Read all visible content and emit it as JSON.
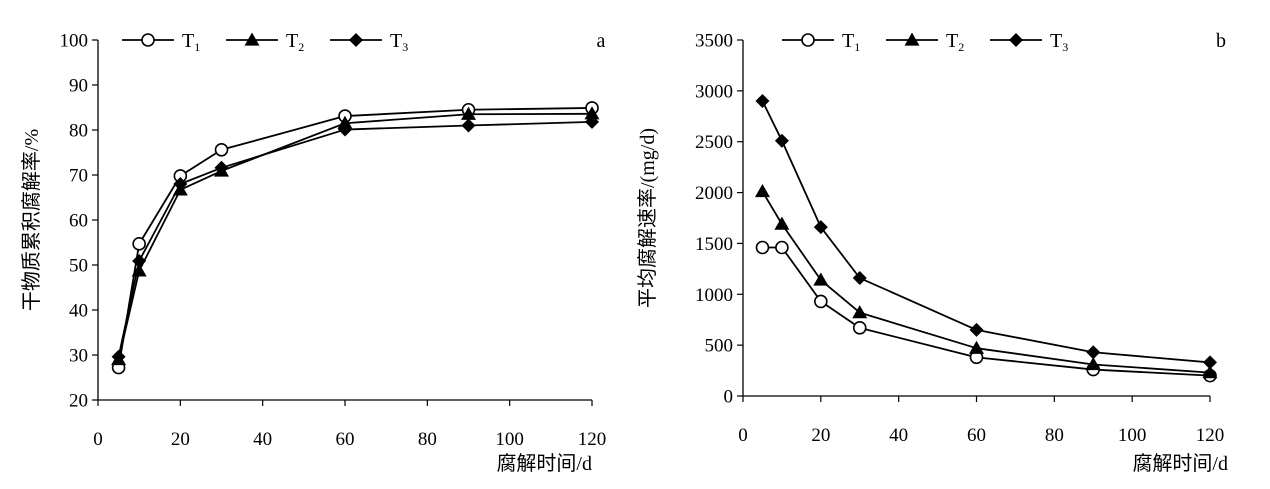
{
  "chart_data": [
    {
      "type": "line",
      "panel_label": "a",
      "xlabel": "腐解时间/d",
      "ylabel": "干物质累积腐解率/%",
      "xlim": [
        0,
        120
      ],
      "ylim": [
        20,
        100
      ],
      "xticks": [
        0,
        20,
        40,
        60,
        80,
        100,
        120
      ],
      "yticks": [
        20,
        30,
        40,
        50,
        60,
        70,
        80,
        90,
        100
      ],
      "grid": false,
      "legend": "top-left",
      "series": [
        {
          "name": "T1",
          "name_base": "T",
          "name_sub": "1",
          "marker": "circle-open",
          "x": [
            5,
            10,
            20,
            30,
            60,
            90,
            120
          ],
          "y": [
            27.2,
            54.7,
            69.8,
            75.6,
            83.1,
            84.5,
            84.9
          ]
        },
        {
          "name": "T2",
          "name_base": "T",
          "name_sub": "2",
          "marker": "triangle",
          "x": [
            5,
            10,
            20,
            30,
            60,
            90,
            120
          ],
          "y": [
            29.0,
            48.7,
            66.7,
            70.9,
            81.5,
            83.5,
            83.6
          ]
        },
        {
          "name": "T3",
          "name_base": "T",
          "name_sub": "3",
          "marker": "diamond",
          "x": [
            5,
            10,
            20,
            30,
            60,
            90,
            120
          ],
          "y": [
            29.6,
            50.9,
            68.0,
            71.6,
            80.1,
            81.0,
            81.8
          ]
        }
      ]
    },
    {
      "type": "line",
      "panel_label": "b",
      "xlabel": "腐解时间/d",
      "ylabel": "平均腐解速率/(mg/d)",
      "xlim": [
        0,
        120
      ],
      "ylim": [
        0,
        3500
      ],
      "xticks": [
        0,
        20,
        40,
        60,
        80,
        100,
        120
      ],
      "yticks": [
        0,
        500,
        1000,
        1500,
        2000,
        2500,
        3000,
        3500
      ],
      "grid": false,
      "legend": "top-left",
      "series": [
        {
          "name": "T1",
          "name_base": "T",
          "name_sub": "1",
          "marker": "circle-open",
          "x": [
            5,
            10,
            20,
            30,
            60,
            90,
            120
          ],
          "y": [
            1460,
            1460,
            930,
            670,
            380,
            260,
            200
          ]
        },
        {
          "name": "T2",
          "name_base": "T",
          "name_sub": "2",
          "marker": "triangle",
          "x": [
            5,
            10,
            20,
            30,
            60,
            90,
            120
          ],
          "y": [
            2010,
            1690,
            1140,
            820,
            470,
            310,
            230
          ]
        },
        {
          "name": "T3",
          "name_base": "T",
          "name_sub": "3",
          "marker": "diamond",
          "x": [
            5,
            10,
            20,
            30,
            60,
            90,
            120
          ],
          "y": [
            2900,
            2510,
            1660,
            1160,
            650,
            430,
            330
          ]
        }
      ]
    }
  ]
}
